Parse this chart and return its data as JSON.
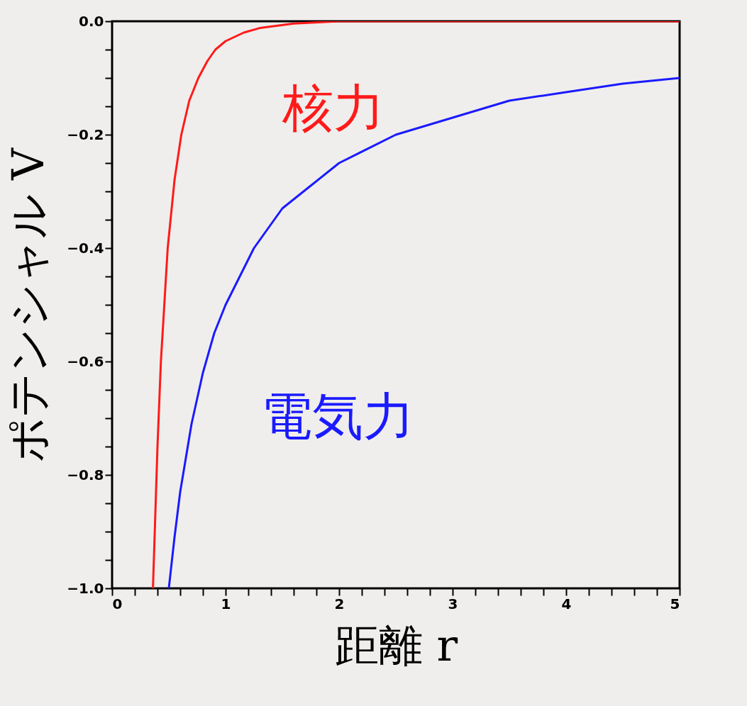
{
  "chart_data": {
    "type": "line",
    "xlabel": "距離 r",
    "ylabel": "ポテンシャル V",
    "legend": false,
    "grid": false,
    "marker": "none",
    "line_style": "solid",
    "xlim": [
      0,
      5
    ],
    "ylim": [
      -1,
      0
    ],
    "xticks": [
      0,
      {
        "value": 0.2,
        "label": null
      },
      {
        "value": 0.4,
        "label": null
      },
      {
        "value": 0.6,
        "label": null
      },
      {
        "value": 0.8,
        "label": null
      },
      1,
      {
        "value": 1.2,
        "label": null
      },
      {
        "value": 1.4,
        "label": null
      },
      {
        "value": 1.6,
        "label": null
      },
      {
        "value": 1.8,
        "label": null
      },
      2,
      {
        "value": 2.2,
        "label": null
      },
      {
        "value": 2.4,
        "label": null
      },
      {
        "value": 2.6,
        "label": null
      },
      {
        "value": 2.8,
        "label": null
      },
      3,
      {
        "value": 3.2,
        "label": null
      },
      {
        "value": 3.4,
        "label": null
      },
      {
        "value": 3.6,
        "label": null
      },
      {
        "value": 3.8,
        "label": null
      },
      4,
      {
        "value": 4.2,
        "label": null
      },
      {
        "value": 4.4,
        "label": null
      },
      {
        "value": 4.6,
        "label": null
      },
      {
        "value": 4.8,
        "label": null
      },
      5
    ],
    "yticks": [
      {
        "value": -1,
        "label": "−1.0"
      },
      {
        "value": -0.95,
        "label": null
      },
      {
        "value": -0.9,
        "label": null
      },
      {
        "value": -0.85,
        "label": null
      },
      {
        "value": -0.8,
        "label": "−0.8"
      },
      {
        "value": -0.75,
        "label": null
      },
      {
        "value": -0.7,
        "label": null
      },
      {
        "value": -0.65,
        "label": null
      },
      {
        "value": -0.6,
        "label": "−0.6"
      },
      {
        "value": -0.55,
        "label": null
      },
      {
        "value": -0.5,
        "label": null
      },
      {
        "value": -0.45,
        "label": null
      },
      {
        "value": -0.4,
        "label": "−0.4"
      },
      {
        "value": -0.35,
        "label": null
      },
      {
        "value": -0.3,
        "label": null
      },
      {
        "value": -0.25,
        "label": null
      },
      {
        "value": -0.2,
        "label": "−0.2"
      },
      {
        "value": -0.15,
        "label": null
      },
      {
        "value": -0.1,
        "label": null
      },
      {
        "value": -0.05,
        "label": null
      },
      {
        "value": 0,
        "label": "0.0"
      }
    ],
    "series": [
      {
        "name": "核力",
        "color": "#ff1a1a",
        "x": [
          0.36,
          0.4,
          0.43,
          0.49,
          0.55,
          0.61,
          0.68,
          0.76,
          0.84,
          0.91,
          1.0,
          1.16,
          1.3,
          1.6,
          2.0,
          3.0,
          4.0,
          5.0
        ],
        "values": [
          -1,
          -0.75,
          -0.6,
          -0.4,
          -0.28,
          -0.2,
          -0.14,
          -0.1,
          -0.07,
          -0.05,
          -0.035,
          -0.02,
          -0.012,
          -0.004,
          0,
          0,
          0,
          0
        ]
      },
      {
        "name": "電気力",
        "color": "#1a1aff",
        "x": [
          0.5,
          0.55,
          0.6,
          0.7,
          0.8,
          0.9,
          1.0,
          1.25,
          1.5,
          1.75,
          2.0,
          2.5,
          3.0,
          3.5,
          4.0,
          4.5,
          5.0
        ],
        "values": [
          -1,
          -0.91,
          -0.83,
          -0.71,
          -0.62,
          -0.55,
          -0.5,
          -0.4,
          -0.33,
          -0.29,
          -0.25,
          -0.2,
          -0.17,
          -0.14,
          -0.125,
          -0.11,
          -0.1
        ]
      }
    ]
  }
}
